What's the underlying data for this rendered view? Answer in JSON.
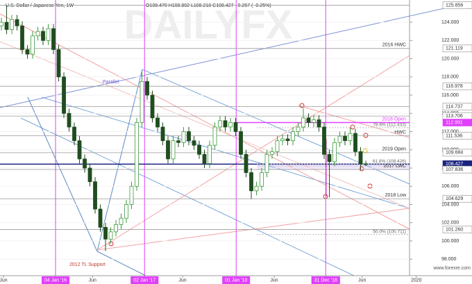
{
  "chart_data": {
    "type": "candlestick",
    "title": "U.S. Dollar / Japanese Yen, 1W",
    "ohlc_header": "O108.470 H108.802 L108.218 C108.427 −0.267 (−0.25%)",
    "watermark": "DAILYFX",
    "source": "www.forexre.com",
    "up_color": "#3c9a3c",
    "down_color": "#1f4d1f",
    "open": [
      123.6,
      124.0,
      123.2,
      124.3,
      123.6,
      121.0,
      120.5,
      122.5,
      123.0,
      122.0,
      123.3,
      121.0,
      118.0,
      114.0,
      112.5,
      111.0,
      109.0,
      108.0,
      106.5,
      103.5,
      101.5,
      100.2,
      101.0,
      101.8,
      102.5,
      104.0,
      106.0,
      113.0,
      117.5,
      116.0,
      113.5,
      112.5,
      111.0,
      109.0,
      111.0,
      110.8,
      112.0,
      111.0,
      110.5,
      109.5,
      108.5,
      110.5,
      112.5,
      113.2,
      112.5,
      113.0,
      112.0,
      109.5,
      107.5,
      105.5,
      106.0,
      107.5,
      109.5,
      109.8,
      111.0,
      111.2,
      111.0,
      112.0,
      112.5,
      113.5,
      113.0,
      113.3,
      112.5,
      109.5,
      108.7,
      110.8,
      111.5,
      111.0,
      111.8,
      109.8,
      108.47
    ],
    "high": [
      124.5,
      125.86,
      124.8,
      124.8,
      124.1,
      121.5,
      123.0,
      123.5,
      123.5,
      123.8,
      123.8,
      121.5,
      118.5,
      114.5,
      113.0,
      111.5,
      109.5,
      108.5,
      107.0,
      104.0,
      102.0,
      101.5,
      102.3,
      103.0,
      104.5,
      106.5,
      113.5,
      118.6,
      118.0,
      116.5,
      114.0,
      113.0,
      111.5,
      111.5,
      111.5,
      112.5,
      112.5,
      111.5,
      111.0,
      110.0,
      111.0,
      113.0,
      113.7,
      113.7,
      113.5,
      113.5,
      112.5,
      110.0,
      108.0,
      106.5,
      108.0,
      110.0,
      110.3,
      111.5,
      111.7,
      111.7,
      112.5,
      113.0,
      114.55,
      114.0,
      113.8,
      113.8,
      113.0,
      110.0,
      111.3,
      112.0,
      112.0,
      112.4,
      112.3,
      110.3,
      108.802
    ],
    "low": [
      123.1,
      122.7,
      122.7,
      123.1,
      120.5,
      120.0,
      120.0,
      122.0,
      121.5,
      121.5,
      120.5,
      117.5,
      113.5,
      112.0,
      110.5,
      108.5,
      107.5,
      106.0,
      103.0,
      101.0,
      98.9,
      99.7,
      100.5,
      101.3,
      102.0,
      103.5,
      105.5,
      112.5,
      115.5,
      113.0,
      112.0,
      110.5,
      108.5,
      108.5,
      110.3,
      110.3,
      110.5,
      110.0,
      109.0,
      108.0,
      108.0,
      110.0,
      112.0,
      112.0,
      112.0,
      111.5,
      109.0,
      107.0,
      104.6,
      105.0,
      105.5,
      107.0,
      109.0,
      109.3,
      110.5,
      110.5,
      110.5,
      111.5,
      112.0,
      112.5,
      112.5,
      112.0,
      109.0,
      104.8,
      108.2,
      110.3,
      110.5,
      110.5,
      109.3,
      107.8,
      108.218
    ],
    "close": [
      124.0,
      123.2,
      124.3,
      123.6,
      121.0,
      120.5,
      122.5,
      123.0,
      122.0,
      123.3,
      121.0,
      118.0,
      114.0,
      112.5,
      111.0,
      109.0,
      108.0,
      106.5,
      103.5,
      101.5,
      100.2,
      101.0,
      101.8,
      102.5,
      104.0,
      106.0,
      113.0,
      117.5,
      116.0,
      113.5,
      112.5,
      111.0,
      109.0,
      111.0,
      110.8,
      112.0,
      111.0,
      110.5,
      109.5,
      108.5,
      110.5,
      112.5,
      113.2,
      112.5,
      113.0,
      112.0,
      109.5,
      107.5,
      105.5,
      106.0,
      107.5,
      109.5,
      109.8,
      111.0,
      111.2,
      111.0,
      112.0,
      112.5,
      113.5,
      113.0,
      113.3,
      112.5,
      109.5,
      108.7,
      110.8,
      111.5,
      111.0,
      111.8,
      109.8,
      108.47,
      108.427
    ],
    "xlim": [
      -0.27,
      78.4
    ],
    "xticks": [
      {
        "value": 0.4,
        "label": "Jun"
      },
      {
        "value": 10.4,
        "label": "04 Jan '16"
      },
      {
        "value": 17.5,
        "label": "Jun"
      },
      {
        "value": 27.5,
        "label": "02 Jan '17"
      },
      {
        "value": 34.8,
        "label": "Jun"
      },
      {
        "value": 45.1,
        "label": "01 Jan '18"
      },
      {
        "value": 52.4,
        "label": "Jun"
      },
      {
        "value": 62.3,
        "label": "31 Dec '18"
      },
      {
        "value": 69.3,
        "label": "Jun"
      },
      {
        "value": 79.7,
        "label": "2020"
      }
    ],
    "highlight_xticks": [
      1,
      3,
      5,
      7
    ],
    "highlight_color": "#e040fb",
    "ylim": [
      96.19,
      126.44
    ],
    "yticks": [
      {
        "value": 98,
        "label": "98.000"
      },
      {
        "value": 100,
        "label": "100.000"
      },
      {
        "value": 102,
        "label": "102.000"
      },
      {
        "value": 104,
        "label": "104.000"
      },
      {
        "value": 106,
        "label": "106.000"
      },
      {
        "value": 108,
        "label": "108.000"
      },
      {
        "value": 110,
        "label": "110.000"
      },
      {
        "value": 112,
        "label": "112.000"
      },
      {
        "value": 114,
        "label": "114.000"
      },
      {
        "value": 116,
        "label": "116.000"
      },
      {
        "value": 118,
        "label": "118.000"
      },
      {
        "value": 120,
        "label": "120.000"
      },
      {
        "value": 122,
        "label": "122.000"
      },
      {
        "value": 124,
        "label": "124.000"
      }
    ],
    "levels": [
      {
        "value": 125.856,
        "label": "125.856"
      },
      {
        "value": 121.119,
        "label": "121.119",
        "note": "2016 HWC"
      },
      {
        "value": 116.978,
        "label": "116.978"
      },
      {
        "value": 114.737,
        "label": "114.737"
      },
      {
        "value": 113.706,
        "label": "113.706"
      },
      {
        "value": 112.991,
        "label": "112.991",
        "note": "2018 Open",
        "color": "#e040fb"
      },
      {
        "value": 111.536,
        "label": "111.536",
        "note": "HWC"
      },
      {
        "value": 109.684,
        "label": "109.684",
        "note": "2019 Open"
      },
      {
        "value": 108.427,
        "label": "108.427",
        "color": "#1a237e"
      },
      {
        "value": 107.836,
        "label": "107.836",
        "note": "2017 LWC"
      },
      {
        "value": 104.629,
        "label": "104.629",
        "note": "2018 Low"
      },
      {
        "value": 101.26,
        "label": "101.260"
      }
    ],
    "annotations": [
      {
        "text": "78.6% (112.433)",
        "value": 112.433
      },
      {
        "text": "61.8% (108.426)",
        "value": 108.426
      },
      {
        "text": "50.0% (100.711)",
        "value": 100.711
      }
    ],
    "labels": [
      "Parallel",
      "2012 TL Support"
    ]
  }
}
